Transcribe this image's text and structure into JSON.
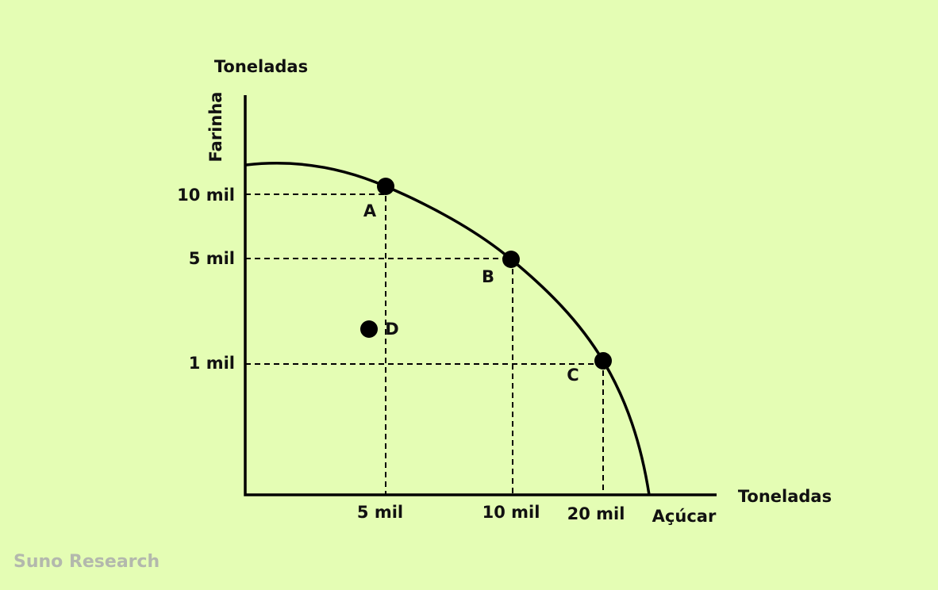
{
  "y_axis": {
    "unit": "Toneladas",
    "label": "Farinha",
    "ticks": [
      "10 mil",
      "5 mil",
      "1 mil"
    ]
  },
  "x_axis": {
    "unit": "Toneladas",
    "label": "Açúcar",
    "ticks": [
      "5 mil",
      "10 mil",
      "20 mil"
    ]
  },
  "points": [
    "A",
    "B",
    "C",
    "D"
  ],
  "watermark": "Suno Research"
}
